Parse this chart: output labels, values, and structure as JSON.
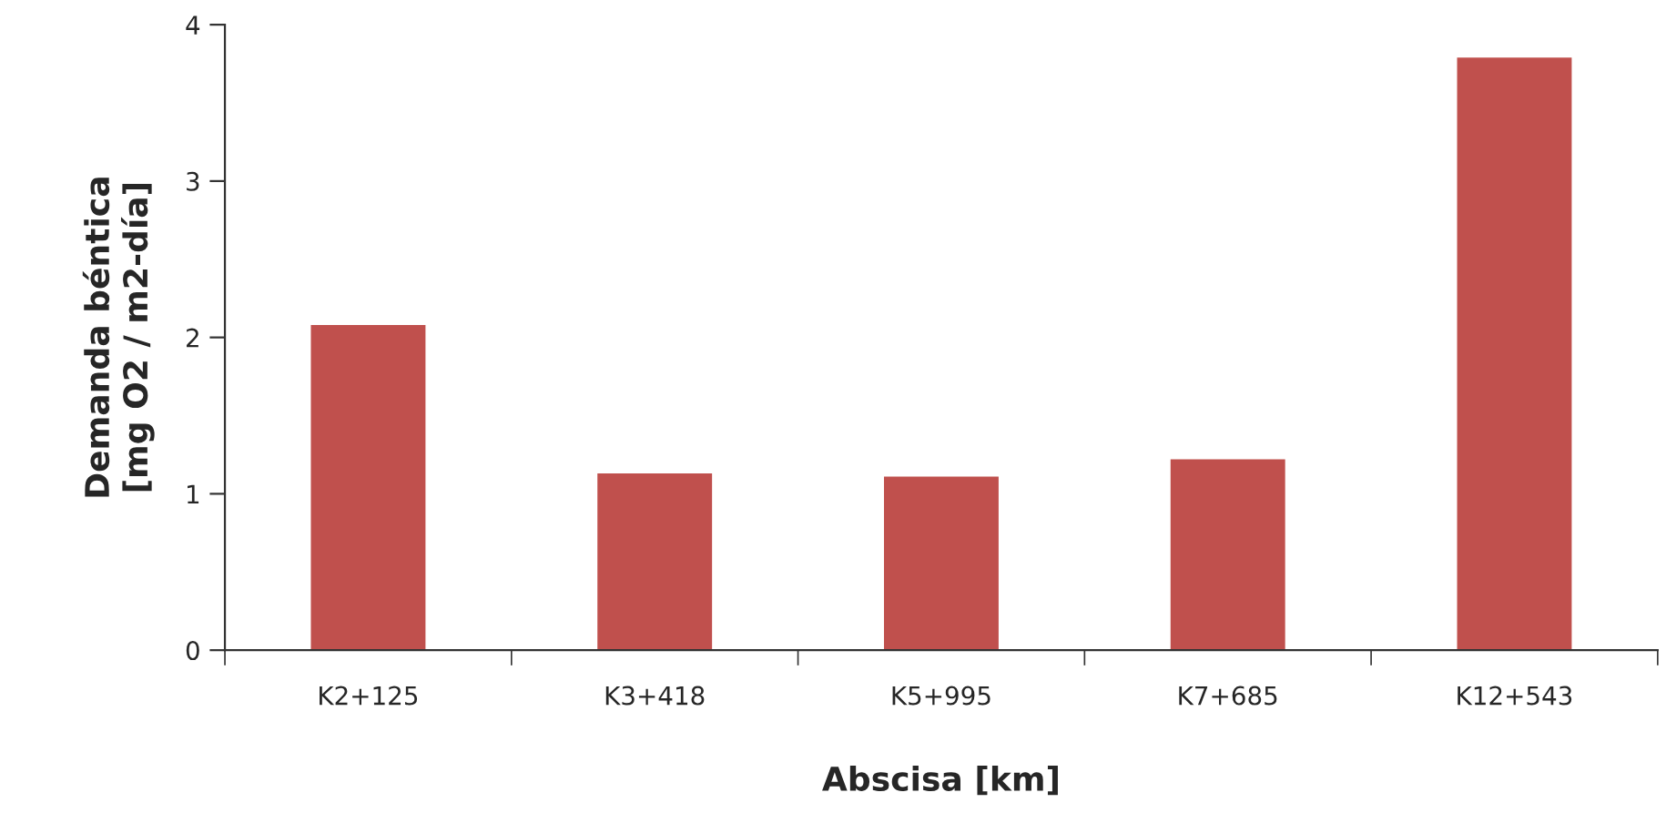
{
  "chart_data": {
    "type": "bar",
    "xlabel": "Abscisa [km]",
    "ylabel": "Demanda béntica\n[mg O2 / m2-día]",
    "categories": [
      "K2+125",
      "K3+418",
      "K5+995",
      "K7+685",
      "K12+543"
    ],
    "values": [
      2.08,
      1.13,
      1.11,
      1.22,
      3.79
    ],
    "color": "#c0504d",
    "ylim": [
      0,
      4
    ],
    "yticks": [
      0,
      1,
      2,
      3,
      4
    ],
    "grid": false,
    "legend": false
  }
}
